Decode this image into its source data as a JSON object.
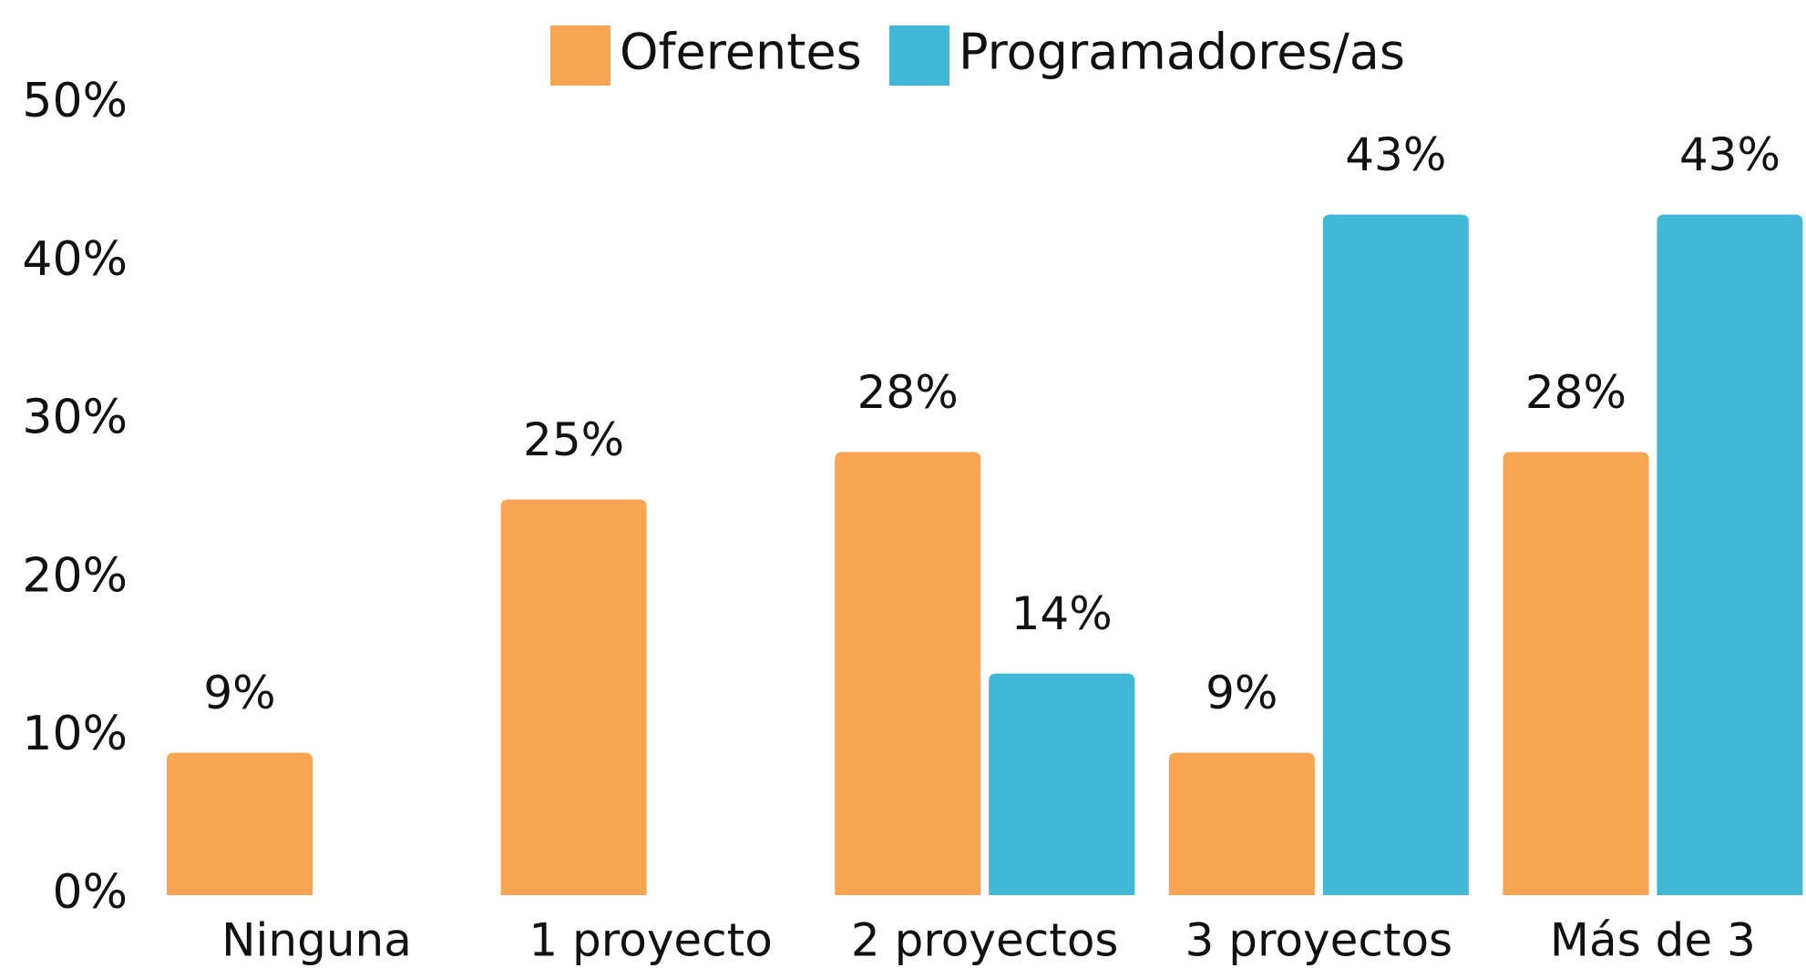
{
  "chart_data": {
    "type": "bar",
    "categories": [
      "Ninguna",
      "1 proyecto",
      "2 proyectos",
      "3 proyectos",
      "Más de 3"
    ],
    "series": [
      {
        "name": "Oferentes",
        "color": "#f7a552",
        "values": [
          9,
          25,
          28,
          9,
          28
        ],
        "value_labels": [
          "9%",
          "25%",
          "28%",
          "9%",
          "28%"
        ]
      },
      {
        "name": "Programadores/as",
        "color": "#40b8d6",
        "values": [
          null,
          null,
          14,
          43,
          43
        ],
        "value_labels": [
          null,
          null,
          "14%",
          "43%",
          "43%"
        ]
      }
    ],
    "ylim": [
      0,
      50
    ],
    "yticks": [
      {
        "value": 0,
        "label": "0%"
      },
      {
        "value": 10,
        "label": "10%"
      },
      {
        "value": 20,
        "label": "20%"
      },
      {
        "value": 30,
        "label": "30%"
      },
      {
        "value": 40,
        "label": "40%"
      },
      {
        "value": 50,
        "label": "50%"
      }
    ],
    "grid": false,
    "legend": "top"
  }
}
